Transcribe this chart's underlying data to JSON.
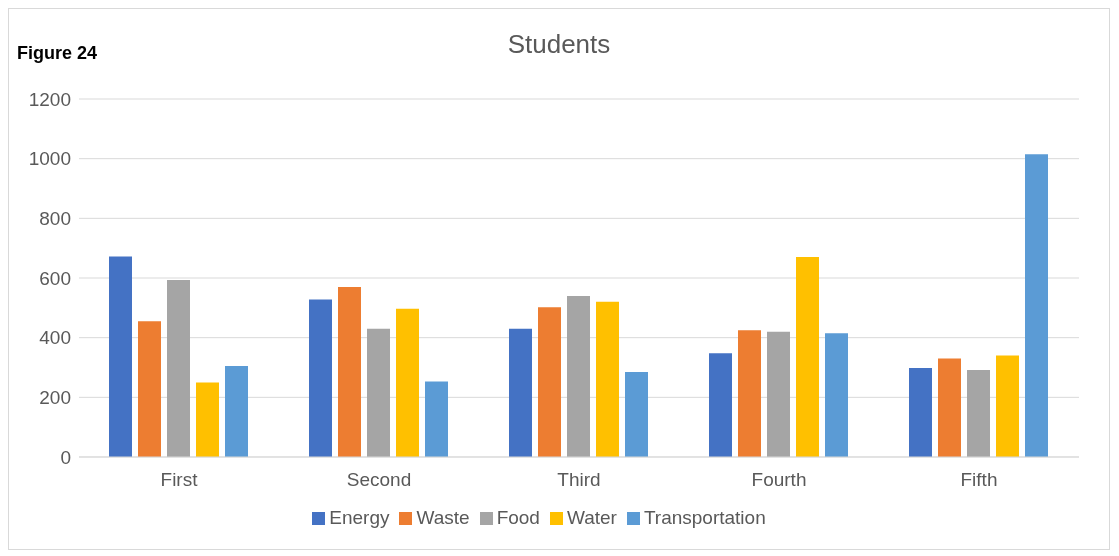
{
  "chart_data": {
    "type": "bar",
    "title": "Students",
    "annotations": [
      "Figure 24"
    ],
    "categories": [
      "First",
      "Second",
      "Third",
      "Fourth",
      "Fifth"
    ],
    "series": [
      {
        "name": "Energy",
        "color": "#4472c4",
        "values": [
          672,
          528,
          430,
          348,
          298
        ]
      },
      {
        "name": "Waste",
        "color": "#ed7d31",
        "values": [
          455,
          570,
          502,
          425,
          330
        ]
      },
      {
        "name": "Food",
        "color": "#a5a5a5",
        "values": [
          593,
          430,
          540,
          420,
          292
        ]
      },
      {
        "name": "Water",
        "color": "#ffc000",
        "values": [
          250,
          497,
          520,
          670,
          340
        ]
      },
      {
        "name": "Transportation",
        "color": "#5b9bd5",
        "values": [
          305,
          253,
          285,
          415,
          1015
        ]
      }
    ],
    "ylim": [
      0,
      1200
    ],
    "yticks": [
      0,
      200,
      400,
      600,
      800,
      1000,
      1200
    ],
    "grid": "y",
    "legend": "bottom"
  }
}
